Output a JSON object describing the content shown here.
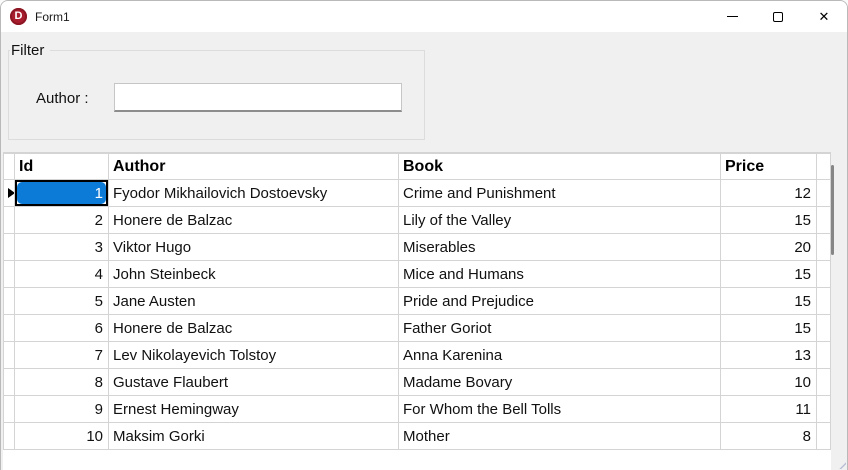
{
  "window": {
    "title": "Form1",
    "icon_letter": "D",
    "close_glyph": "✕",
    "icons": {
      "app": "delphi-app-icon",
      "minimize": "minimize-icon",
      "maximize": "maximize-icon",
      "close": "close-icon"
    }
  },
  "filter": {
    "group_label": "Filter",
    "author_label": "Author :",
    "author_input": {
      "value": "",
      "placeholder": ""
    }
  },
  "grid": {
    "columns": [
      {
        "key": "id",
        "label": "Id",
        "align": "right"
      },
      {
        "key": "author",
        "label": "Author",
        "align": "left"
      },
      {
        "key": "book",
        "label": "Book",
        "align": "left"
      },
      {
        "key": "price",
        "label": "Price",
        "align": "right"
      }
    ],
    "rows": [
      {
        "id": 1,
        "author": "Fyodor Mikhailovich Dostoevsky",
        "book": "Crime and Punishment",
        "price": 12
      },
      {
        "id": 2,
        "author": "Honere de Balzac",
        "book": "Lily of the Valley",
        "price": 15
      },
      {
        "id": 3,
        "author": "Viktor Hugo",
        "book": "Miserables",
        "price": 20
      },
      {
        "id": 4,
        "author": "John Steinbeck",
        "book": "Mice and Humans",
        "price": 15
      },
      {
        "id": 5,
        "author": "Jane Austen",
        "book": "Pride and Prejudice",
        "price": 15
      },
      {
        "id": 6,
        "author": "Honere de Balzac",
        "book": "Father Goriot",
        "price": 15
      },
      {
        "id": 7,
        "author": "Lev Nikolayevich Tolstoy",
        "book": "Anna Karenina",
        "price": 13
      },
      {
        "id": 8,
        "author": "Gustave Flaubert",
        "book": "Madame Bovary",
        "price": 10
      },
      {
        "id": 9,
        "author": "Ernest Hemingway",
        "book": "For Whom the Bell Tolls",
        "price": 11
      },
      {
        "id": 10,
        "author": "Maksim Gorki",
        "book": "Mother",
        "price": 8
      }
    ],
    "current_row_index": 0,
    "selected_cell": {
      "row_index": 0,
      "column": "id",
      "value": "1"
    }
  },
  "colors": {
    "selection_blue": "#0c7bd8",
    "titlebar_bg": "#ffffff",
    "form_bg": "#f0f0f0",
    "grid_bg": "#ffffff",
    "grid_line": "#d4d4d4",
    "scroll_thumb": "#868686",
    "delphi_red": "#a81e2e"
  }
}
